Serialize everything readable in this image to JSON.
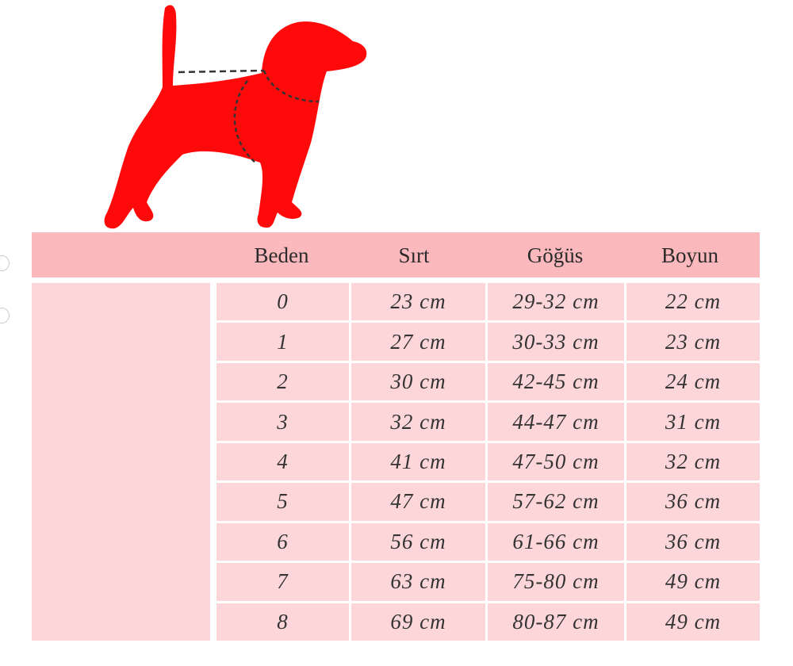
{
  "colors": {
    "dog": "#ff0a0a",
    "header": "#fbb9bd",
    "cell": "#fcd6d9"
  },
  "icons": {
    "illustration": "dog-silhouette-with-measurement-lines"
  },
  "table": {
    "headers": [
      "Beden",
      "Sırt",
      "Göğüs",
      "Boyun"
    ],
    "rows": [
      [
        "0",
        "23 cm",
        "29-32 cm",
        "22 cm"
      ],
      [
        "1",
        "27 cm",
        "30-33 cm",
        "23 cm"
      ],
      [
        "2",
        "30 cm",
        "42-45 cm",
        "24 cm"
      ],
      [
        "3",
        "32 cm",
        "44-47 cm",
        "31 cm"
      ],
      [
        "4",
        "41 cm",
        "47-50 cm",
        "32 cm"
      ],
      [
        "5",
        "47 cm",
        "57-62 cm",
        "36 cm"
      ],
      [
        "6",
        "56 cm",
        "61-66 cm",
        "36 cm"
      ],
      [
        "7",
        "63 cm",
        "75-80 cm",
        "49 cm"
      ],
      [
        "8",
        "69 cm",
        "80-87 cm",
        "49 cm"
      ]
    ]
  }
}
